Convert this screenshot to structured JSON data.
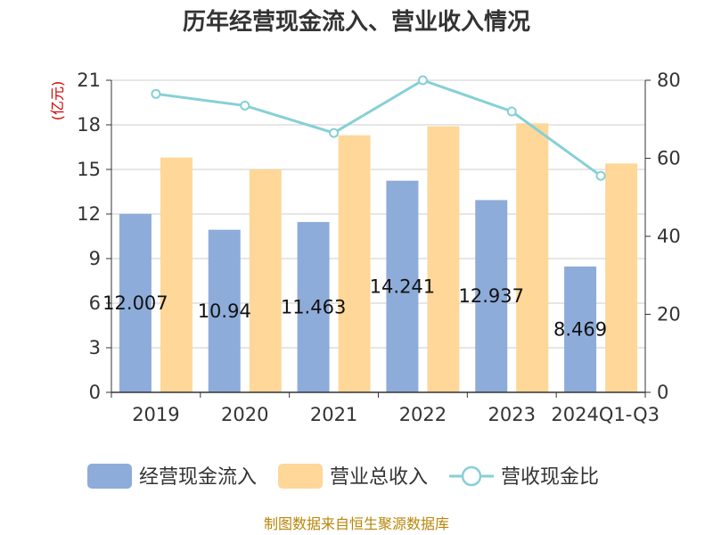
{
  "chart_data": {
    "type": "bar",
    "title": "历年经营现金流入、营业收入情况",
    "categories": [
      "2019",
      "2020",
      "2021",
      "2022",
      "2023",
      "2024Q1-Q3"
    ],
    "series": [
      {
        "name": "经营现金流入",
        "type": "bar",
        "axis": "left",
        "color": "#8eacd9",
        "values": [
          12.007,
          10.94,
          11.463,
          14.241,
          12.937,
          8.469
        ],
        "labels": [
          "12.007",
          "10.94",
          "11.463",
          "14.241",
          "12.937",
          "8.469"
        ]
      },
      {
        "name": "营业总收入",
        "type": "bar",
        "axis": "left",
        "color": "#fed799",
        "values": [
          15.8,
          15.0,
          17.3,
          17.9,
          18.1,
          15.4
        ]
      },
      {
        "name": "营收现金比",
        "type": "line",
        "axis": "right",
        "color": "#86d0d6",
        "values": [
          76.5,
          73.5,
          66.5,
          80.0,
          72.0,
          55.5
        ]
      }
    ],
    "left_axis": {
      "unit": "(亿元)",
      "min": 0,
      "max": 21,
      "ticks": [
        0,
        3,
        6,
        9,
        12,
        15,
        18,
        21
      ]
    },
    "right_axis": {
      "min": 0,
      "max": 80,
      "ticks": [
        0,
        20,
        40,
        60,
        80
      ]
    },
    "grid": true,
    "legend_position": "bottom"
  },
  "source": "制图数据来自恒生聚源数据库"
}
